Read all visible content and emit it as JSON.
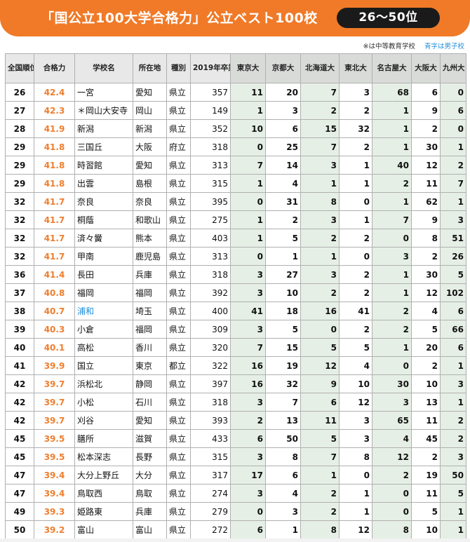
{
  "banner": {
    "title": "「国公立100大学合格力」公立ベスト100校",
    "range": "26〜50位"
  },
  "note": {
    "chuto": "※は中等教育学校",
    "boys": "青字は男子校"
  },
  "headers": {
    "rank": "全国順位",
    "score": "合格力",
    "school": "学校名",
    "pref": "所在地",
    "type": "種別",
    "grads": "2019年卒業生数",
    "universities": [
      "東京大",
      "京都大",
      "北海道大",
      "東北大",
      "名古屋大",
      "大阪大",
      "九州大"
    ]
  },
  "rows": [
    {
      "rank": "26",
      "score": "42.4",
      "name": "一宮",
      "pref": "愛知",
      "type": "県立",
      "grads": "357",
      "boys": false,
      "u": [
        "11",
        "20",
        "7",
        "3",
        "68",
        "6",
        "0"
      ]
    },
    {
      "rank": "27",
      "score": "42.3",
      "name": "＊岡山大安寺",
      "pref": "岡山",
      "type": "県立",
      "grads": "149",
      "boys": false,
      "u": [
        "1",
        "3",
        "2",
        "2",
        "1",
        "9",
        "6"
      ]
    },
    {
      "rank": "28",
      "score": "41.9",
      "name": "新潟",
      "pref": "新潟",
      "type": "県立",
      "grads": "352",
      "boys": false,
      "u": [
        "10",
        "6",
        "15",
        "32",
        "1",
        "2",
        "0"
      ]
    },
    {
      "rank": "29",
      "score": "41.8",
      "name": "三国丘",
      "pref": "大阪",
      "type": "府立",
      "grads": "318",
      "boys": false,
      "u": [
        "0",
        "25",
        "7",
        "2",
        "1",
        "30",
        "1"
      ]
    },
    {
      "rank": "29",
      "score": "41.8",
      "name": "時習館",
      "pref": "愛知",
      "type": "県立",
      "grads": "313",
      "boys": false,
      "u": [
        "7",
        "14",
        "3",
        "1",
        "40",
        "12",
        "2"
      ]
    },
    {
      "rank": "29",
      "score": "41.8",
      "name": "出雲",
      "pref": "島根",
      "type": "県立",
      "grads": "315",
      "boys": false,
      "u": [
        "1",
        "4",
        "1",
        "1",
        "2",
        "11",
        "7"
      ]
    },
    {
      "rank": "32",
      "score": "41.7",
      "name": "奈良",
      "pref": "奈良",
      "type": "県立",
      "grads": "395",
      "boys": false,
      "u": [
        "0",
        "31",
        "8",
        "0",
        "1",
        "62",
        "1"
      ]
    },
    {
      "rank": "32",
      "score": "41.7",
      "name": "桐蔭",
      "pref": "和歌山",
      "type": "県立",
      "grads": "275",
      "boys": false,
      "u": [
        "1",
        "2",
        "3",
        "1",
        "7",
        "9",
        "3"
      ]
    },
    {
      "rank": "32",
      "score": "41.7",
      "name": "済々黌",
      "pref": "熊本",
      "type": "県立",
      "grads": "403",
      "boys": false,
      "u": [
        "1",
        "5",
        "2",
        "2",
        "0",
        "8",
        "51"
      ]
    },
    {
      "rank": "32",
      "score": "41.7",
      "name": "甲南",
      "pref": "鹿児島",
      "type": "県立",
      "grads": "313",
      "boys": false,
      "u": [
        "0",
        "1",
        "1",
        "0",
        "3",
        "2",
        "26"
      ]
    },
    {
      "rank": "36",
      "score": "41.4",
      "name": "長田",
      "pref": "兵庫",
      "type": "県立",
      "grads": "318",
      "boys": false,
      "u": [
        "3",
        "27",
        "3",
        "2",
        "1",
        "30",
        "5"
      ]
    },
    {
      "rank": "37",
      "score": "40.8",
      "name": "福岡",
      "pref": "福岡",
      "type": "県立",
      "grads": "392",
      "boys": false,
      "u": [
        "3",
        "10",
        "2",
        "2",
        "1",
        "12",
        "102"
      ]
    },
    {
      "rank": "38",
      "score": "40.7",
      "name": "浦和",
      "pref": "埼玉",
      "type": "県立",
      "grads": "400",
      "boys": true,
      "u": [
        "41",
        "18",
        "16",
        "41",
        "2",
        "4",
        "6"
      ]
    },
    {
      "rank": "39",
      "score": "40.3",
      "name": "小倉",
      "pref": "福岡",
      "type": "県立",
      "grads": "309",
      "boys": false,
      "u": [
        "3",
        "5",
        "0",
        "2",
        "2",
        "5",
        "66"
      ]
    },
    {
      "rank": "40",
      "score": "40.1",
      "name": "高松",
      "pref": "香川",
      "type": "県立",
      "grads": "320",
      "boys": false,
      "u": [
        "7",
        "15",
        "5",
        "5",
        "1",
        "20",
        "6"
      ]
    },
    {
      "rank": "41",
      "score": "39.9",
      "name": "国立",
      "pref": "東京",
      "type": "都立",
      "grads": "322",
      "boys": false,
      "u": [
        "16",
        "19",
        "12",
        "4",
        "0",
        "2",
        "1"
      ]
    },
    {
      "rank": "42",
      "score": "39.7",
      "name": "浜松北",
      "pref": "静岡",
      "type": "県立",
      "grads": "397",
      "boys": false,
      "u": [
        "16",
        "32",
        "9",
        "10",
        "30",
        "10",
        "3"
      ]
    },
    {
      "rank": "42",
      "score": "39.7",
      "name": "小松",
      "pref": "石川",
      "type": "県立",
      "grads": "318",
      "boys": false,
      "u": [
        "3",
        "7",
        "6",
        "12",
        "3",
        "13",
        "1"
      ]
    },
    {
      "rank": "42",
      "score": "39.7",
      "name": "刈谷",
      "pref": "愛知",
      "type": "県立",
      "grads": "393",
      "boys": false,
      "u": [
        "2",
        "13",
        "11",
        "3",
        "65",
        "11",
        "2"
      ]
    },
    {
      "rank": "45",
      "score": "39.5",
      "name": "膳所",
      "pref": "滋賀",
      "type": "県立",
      "grads": "433",
      "boys": false,
      "u": [
        "6",
        "50",
        "5",
        "3",
        "4",
        "45",
        "2"
      ]
    },
    {
      "rank": "45",
      "score": "39.5",
      "name": "松本深志",
      "pref": "長野",
      "type": "県立",
      "grads": "315",
      "boys": false,
      "u": [
        "3",
        "8",
        "7",
        "8",
        "12",
        "2",
        "3"
      ]
    },
    {
      "rank": "47",
      "score": "39.4",
      "name": "大分上野丘",
      "pref": "大分",
      "type": "県立",
      "grads": "317",
      "boys": false,
      "u": [
        "17",
        "6",
        "1",
        "0",
        "2",
        "19",
        "50"
      ]
    },
    {
      "rank": "47",
      "score": "39.4",
      "name": "鳥取西",
      "pref": "鳥取",
      "type": "県立",
      "grads": "274",
      "boys": false,
      "u": [
        "3",
        "4",
        "2",
        "1",
        "0",
        "11",
        "5"
      ]
    },
    {
      "rank": "49",
      "score": "39.3",
      "name": "姫路東",
      "pref": "兵庫",
      "type": "県立",
      "grads": "279",
      "boys": false,
      "u": [
        "0",
        "3",
        "2",
        "1",
        "0",
        "5",
        "1"
      ]
    },
    {
      "rank": "50",
      "score": "39.2",
      "name": "富山",
      "pref": "富山",
      "type": "県立",
      "grads": "272",
      "boys": false,
      "u": [
        "6",
        "1",
        "8",
        "12",
        "8",
        "10",
        "1"
      ]
    }
  ]
}
